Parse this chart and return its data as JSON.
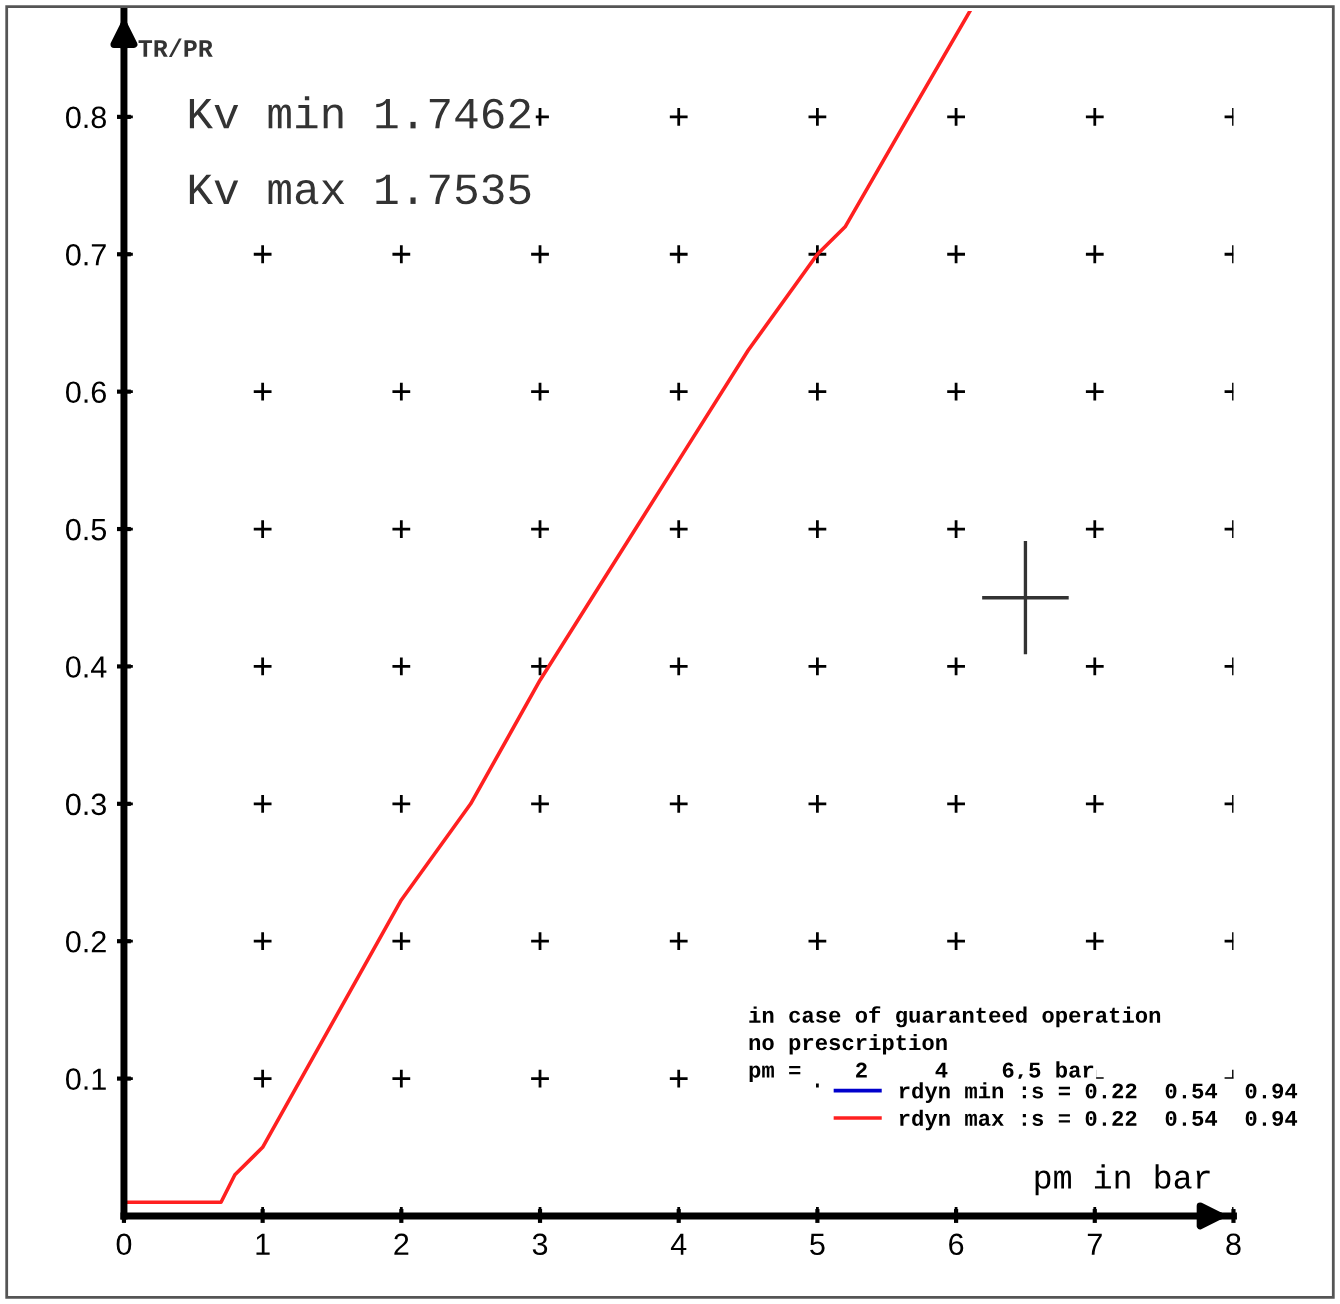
{
  "chart_data": {
    "type": "line",
    "xlabel": "pm in bar",
    "ylabel": "TR/PR",
    "annotations": [
      "Kv min 1.7462",
      "Kv max 1.7535",
      "in case of guaranteed operation",
      "no prescription",
      "pm =    2     4    6,5 bar"
    ],
    "x": [
      0,
      0.7,
      0.8,
      1,
      1.5,
      2,
      2.5,
      3,
      3.5,
      4,
      4.5,
      5,
      5.2,
      5.6,
      6.1
    ],
    "series": [
      {
        "name": "rdyn min :s = 0.22  0.54  0.94",
        "color": "#0000cc",
        "values": [
          null,
          null,
          null,
          null,
          null,
          null,
          null,
          null,
          null,
          null,
          null,
          null,
          null,
          null,
          null
        ]
      },
      {
        "name": "rdyn max :s = 0.22  0.54  0.94",
        "color": "#ff2020",
        "values": [
          0.01,
          0.01,
          0.03,
          0.05,
          0.14,
          0.23,
          0.3,
          0.39,
          0.47,
          0.55,
          0.63,
          0.7,
          0.72,
          0.79,
          0.877
        ]
      }
    ],
    "xlim": [
      0,
      8
    ],
    "ylim": [
      0,
      0.877
    ],
    "xticks": [
      0,
      1,
      2,
      3,
      4,
      5,
      6,
      7,
      8
    ],
    "yticks": [
      0.1,
      0.2,
      0.3,
      0.4,
      0.5,
      0.6,
      0.7,
      0.8
    ],
    "grid": true,
    "legend": "bottom right",
    "marker": "none",
    "line_style": "solid"
  }
}
